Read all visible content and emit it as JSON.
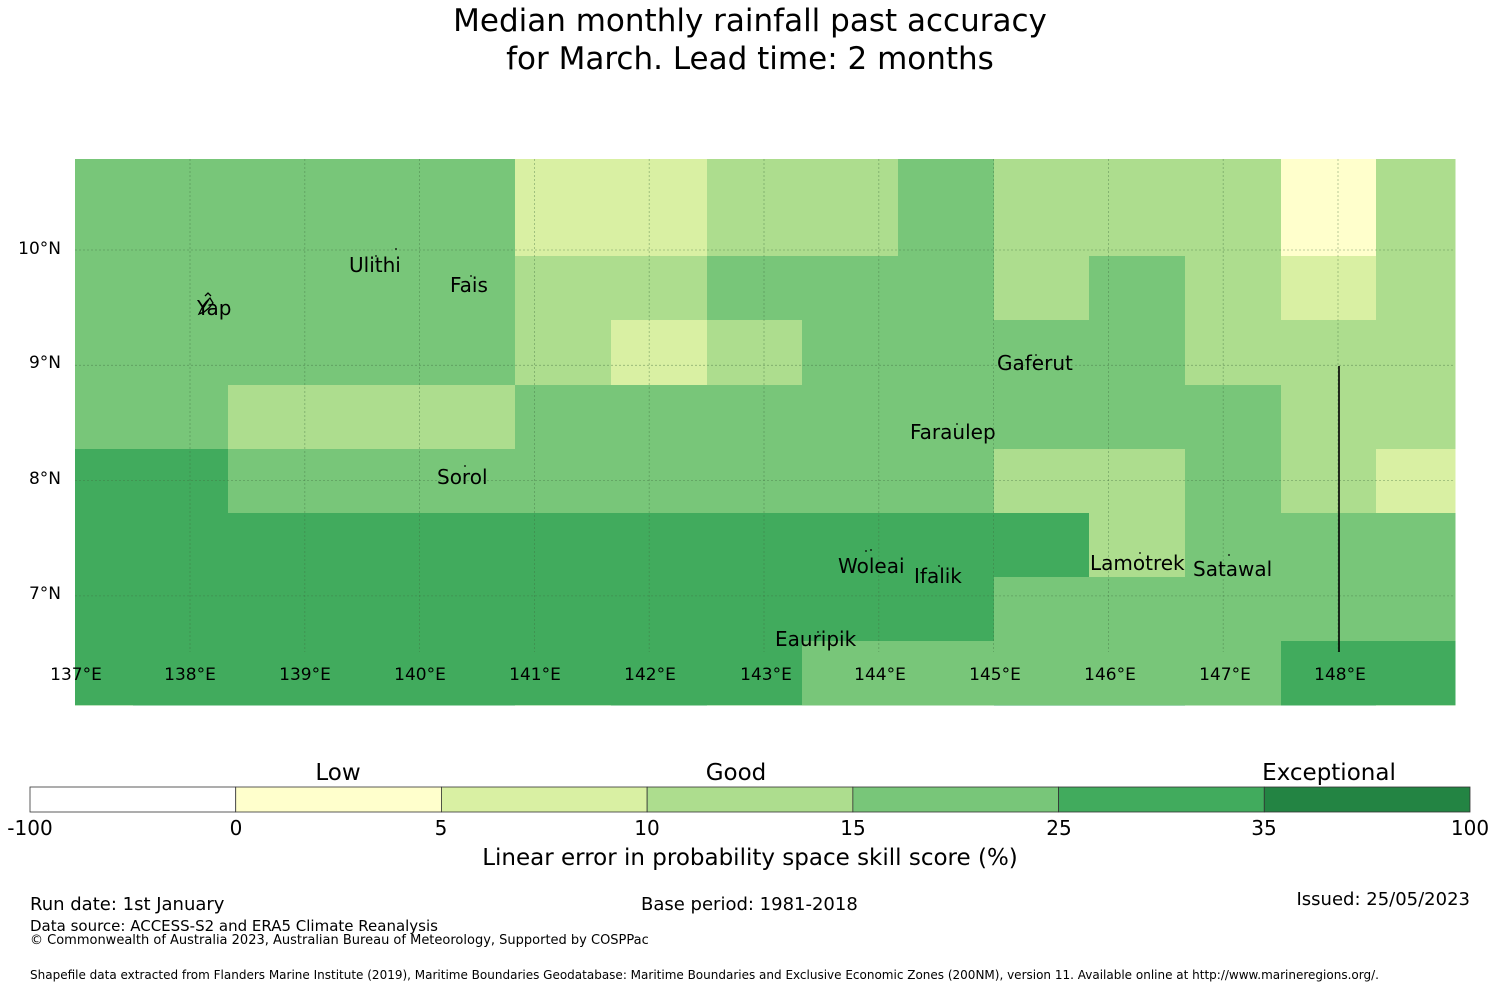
{
  "title_line1": "Median monthly rainfall past accuracy",
  "title_line2": "for March. Lead time: 2 months",
  "map": {
    "lat_labels": [
      "10°N",
      "9°N",
      "8°N",
      "7°N"
    ],
    "lon_labels": [
      "137°E",
      "138°E",
      "139°E",
      "140°E",
      "141°E",
      "142°E",
      "143°E",
      "144°E",
      "145°E",
      "146°E",
      "147°E",
      "148°E"
    ],
    "places": [
      "Ulithi",
      "Fais",
      "Yap",
      "Gaferut",
      "Faraulep",
      "Sorol",
      "Woleai",
      "Ifalik",
      "Lamotrek",
      "Satawal",
      "Eauripik"
    ],
    "palette": [
      "#ffffff",
      "#ffffcc",
      "#d9f0a3",
      "#addd8e",
      "#78c679",
      "#41ab5d",
      "#238443"
    ],
    "skill_grid_lat_rows": [
      [
        4,
        4,
        4,
        4,
        4,
        2,
        2,
        3,
        3,
        4,
        3,
        3,
        3,
        1,
        3
      ],
      [
        4,
        4,
        4,
        4,
        4,
        3,
        3,
        4,
        4,
        4,
        3,
        4,
        3,
        2,
        3
      ],
      [
        4,
        4,
        4,
        4,
        4,
        3,
        2,
        3,
        4,
        4,
        4,
        4,
        3,
        3,
        3
      ],
      [
        4,
        4,
        3,
        3,
        3,
        4,
        4,
        4,
        4,
        4,
        4,
        4,
        4,
        3,
        3
      ],
      [
        5,
        5,
        4,
        4,
        4,
        4,
        4,
        4,
        4,
        4,
        3,
        3,
        4,
        3,
        2
      ],
      [
        5,
        5,
        5,
        5,
        5,
        5,
        5,
        5,
        5,
        5,
        5,
        3,
        4,
        4,
        4
      ],
      [
        5,
        5,
        5,
        5,
        5,
        5,
        5,
        5,
        5,
        5,
        4,
        4,
        4,
        4,
        4
      ],
      [
        5,
        5,
        5,
        5,
        5,
        5,
        5,
        5,
        4,
        4,
        4,
        4,
        4,
        5,
        5
      ],
      [
        4,
        5,
        5,
        5,
        5,
        4,
        5,
        4,
        4,
        4,
        5,
        5,
        4,
        5,
        4
      ]
    ]
  },
  "colorbar": {
    "categories": [
      "Low",
      "Good",
      "Exceptional"
    ],
    "ticks": [
      "-100",
      "0",
      "5",
      "10",
      "15",
      "25",
      "35",
      "100"
    ],
    "colors": [
      "#ffffff",
      "#ffffcc",
      "#d9f0a3",
      "#addd8e",
      "#78c679",
      "#41ab5d",
      "#238443"
    ],
    "label": "Linear error in probability space skill score (%)"
  },
  "footer": {
    "run_date": "Run date: 1st January",
    "base_period": "Base period: 1981-2018",
    "issued": "Issued: 25/05/2023",
    "data_source": "Data source: ACCESS-S2 and ERA5 Climate Reanalysis",
    "copyright": "© Commonwealth of Australia 2023, Australian Bureau of Meteorology, Supported by COSPPac",
    "shapefile": "Shapefile data extracted from Flanders Marine Institute (2019), Maritime Boundaries Geodatabase: Maritime Boundaries and Exclusive Economic Zones (200NM), version 11. Available online at http://www.marineregions.org/."
  }
}
